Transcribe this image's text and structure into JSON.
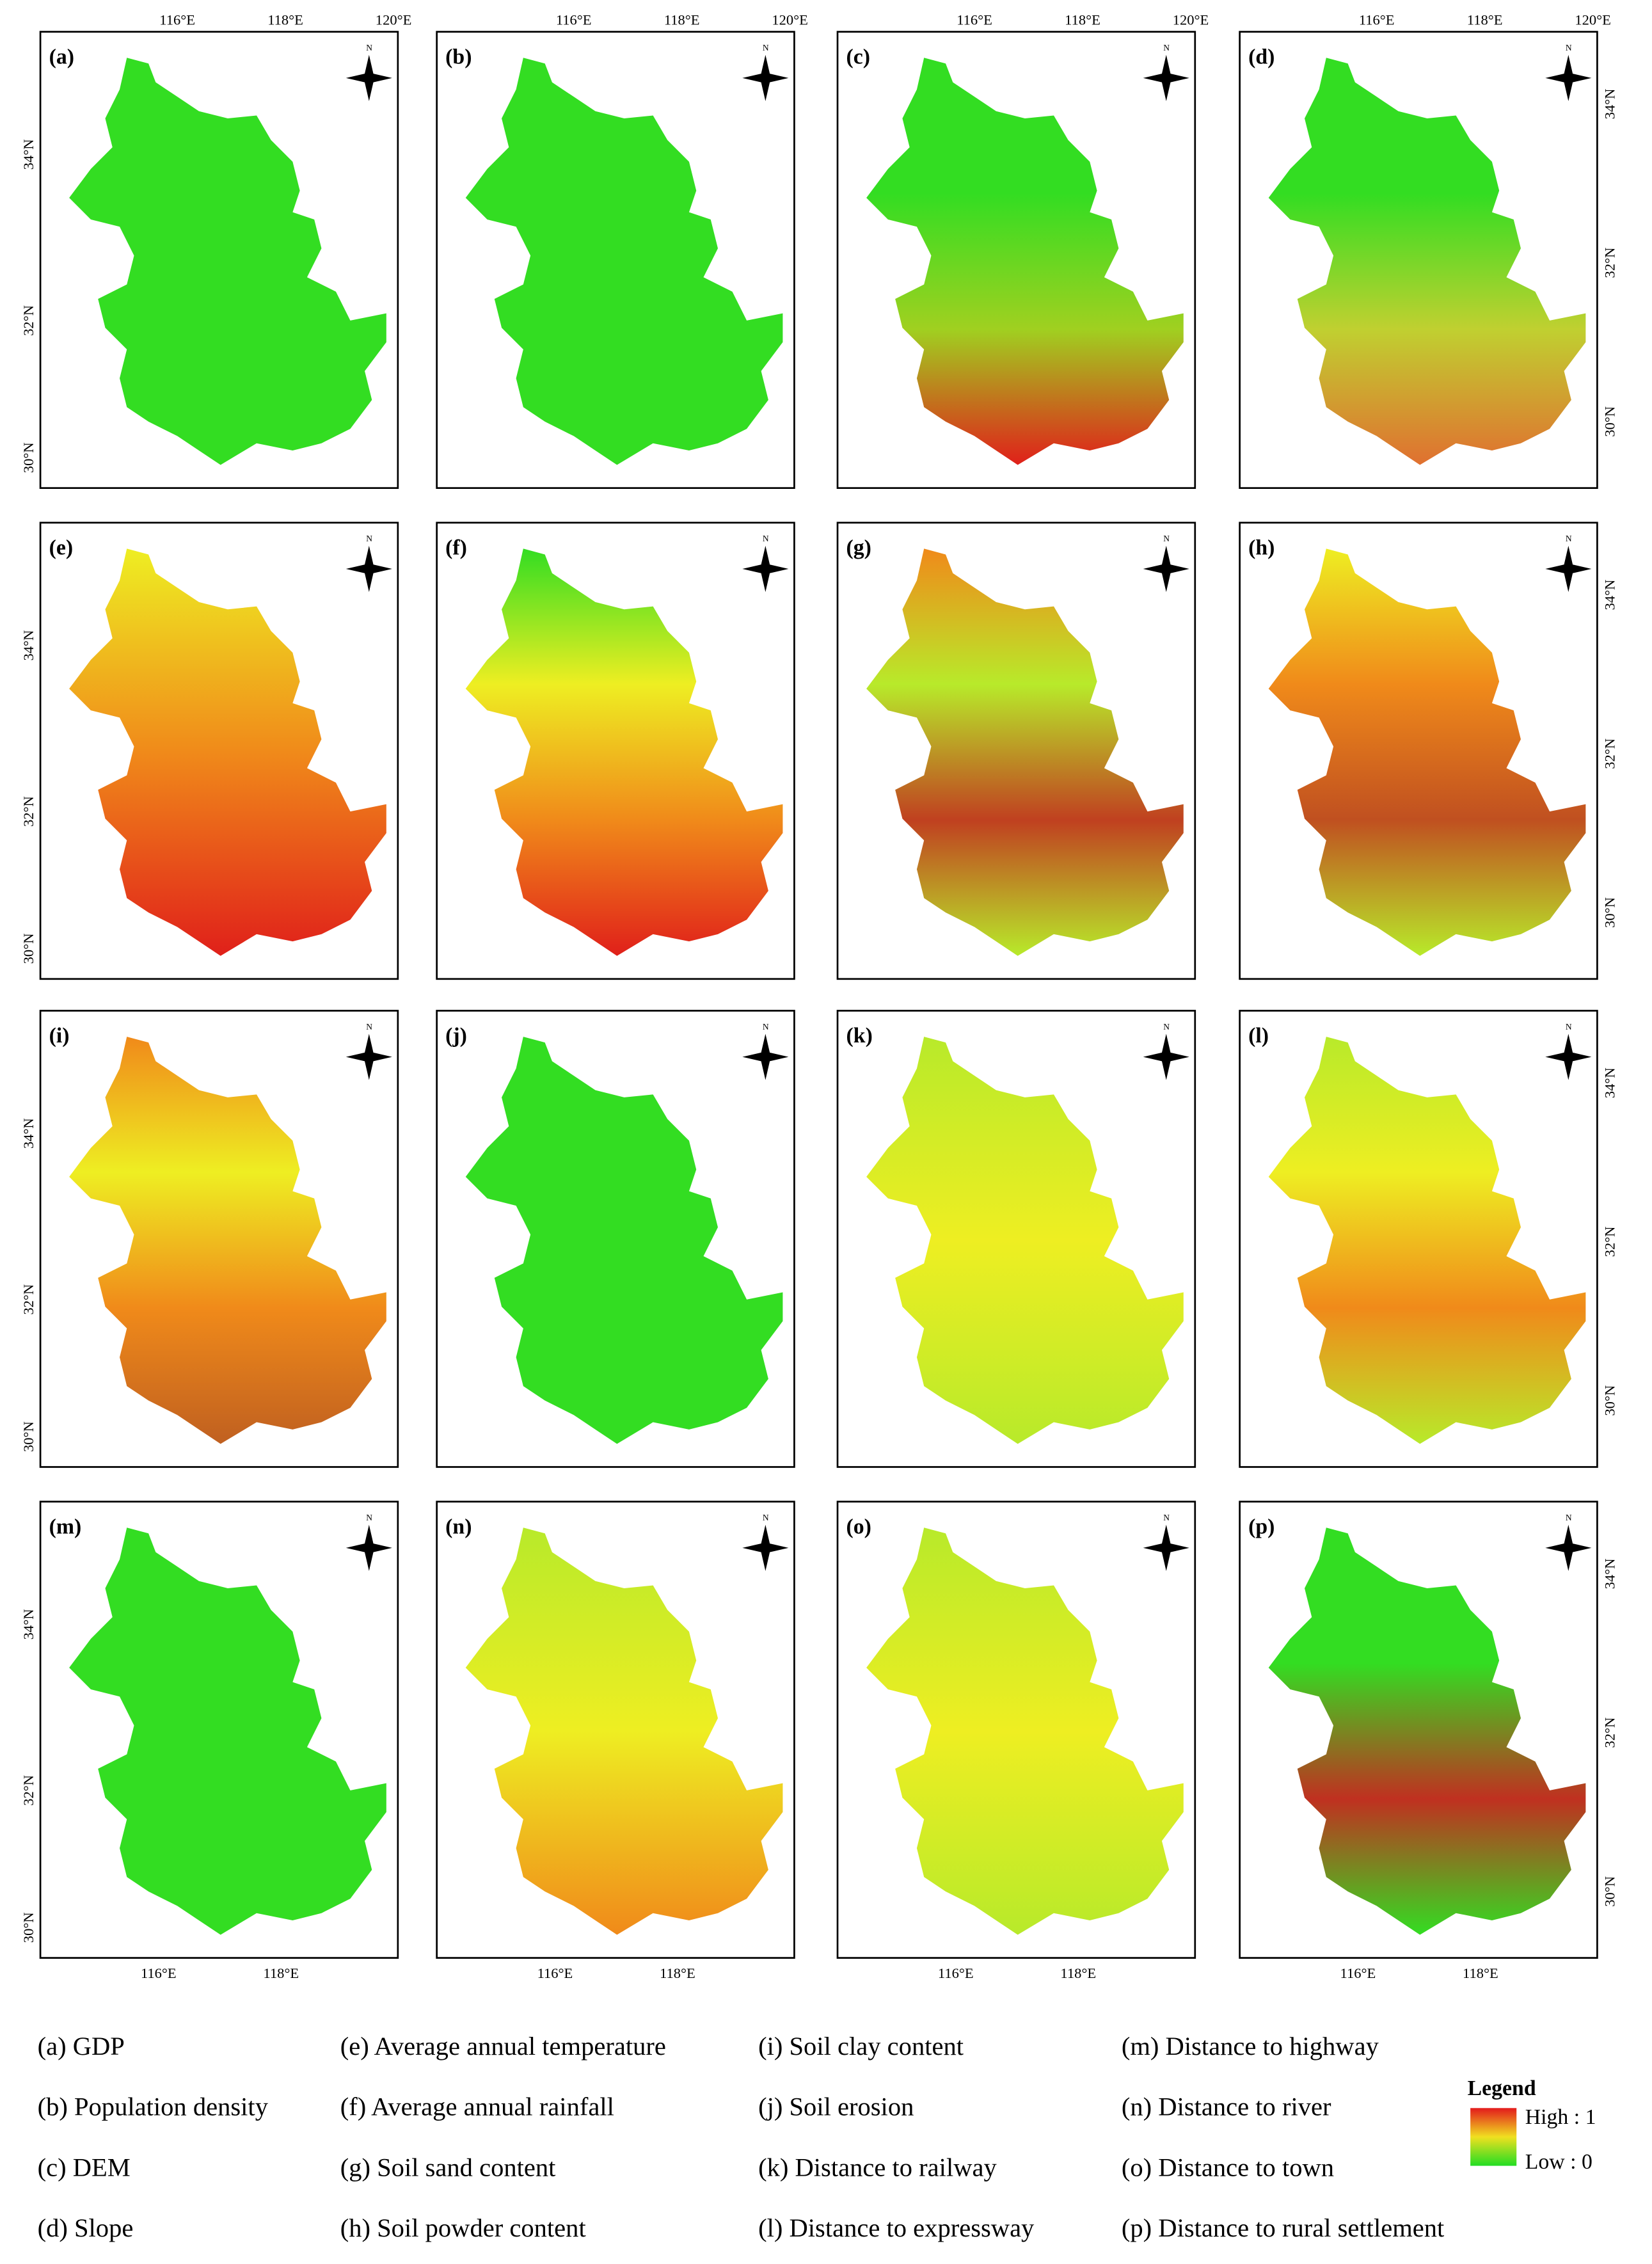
{
  "panels": [
    {
      "label": "(a)"
    },
    {
      "label": "(b)"
    },
    {
      "label": "(c)"
    },
    {
      "label": "(d)"
    },
    {
      "label": "(e)"
    },
    {
      "label": "(f)"
    },
    {
      "label": "(g)"
    },
    {
      "label": "(h)"
    },
    {
      "label": "(i)"
    },
    {
      "label": "(j)"
    },
    {
      "label": "(k)"
    },
    {
      "label": "(l)"
    },
    {
      "label": "(m)"
    },
    {
      "label": "(n)"
    },
    {
      "label": "(o)"
    },
    {
      "label": "(p)"
    }
  ],
  "lon_labels": [
    "116°E",
    "118°E",
    "120°E"
  ],
  "lat_labels": [
    "34°N",
    "32°N",
    "30°N"
  ],
  "north": "N",
  "captions": [
    "(a) GDP",
    "(b) Population density",
    "(c) DEM",
    "(d) Slope",
    "(e) Average annual temperature",
    "(f) Average annual rainfall",
    "(g) Soil sand content",
    "(h) Soil powder content",
    "(i) Soil clay content",
    "(j) Soil erosion",
    "(k) Distance to railway",
    "(l) Distance to expressway",
    "(m) Distance to highway",
    "(n) Distance to river",
    "(o) Distance to town",
    "(p) Distance to rural settlement"
  ],
  "legend": {
    "title": "Legend",
    "high": "High : 1",
    "low": "Low : 0"
  }
}
